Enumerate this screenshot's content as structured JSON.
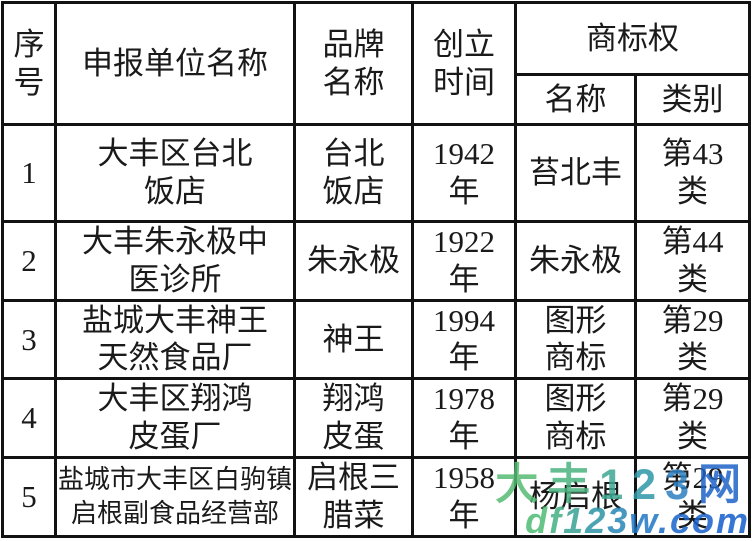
{
  "table": {
    "headers": {
      "serial": "序\n号",
      "company": "申报单位名称",
      "brand": "品牌\n名称",
      "founded": "创立\n时间",
      "trademark_group": "商标权",
      "tm_name": "名称",
      "tm_class": "类别"
    },
    "rows": [
      {
        "serial": "1",
        "company": "大丰区台北\n饭店",
        "brand": "台北\n饭店",
        "founded": "1942\n年",
        "tm_name": "苔北丰",
        "tm_class": "第43\n类"
      },
      {
        "serial": "2",
        "company": "大丰朱永极中\n医诊所",
        "brand": "朱永极",
        "founded": "1922\n年",
        "tm_name": "朱永极",
        "tm_class": "第44\n类"
      },
      {
        "serial": "3",
        "company": "盐城大丰神王\n天然食品厂",
        "brand": "神王",
        "founded": "1994\n年",
        "tm_name": "图形\n商标",
        "tm_class": "第29\n类"
      },
      {
        "serial": "4",
        "company": "大丰区翔鸿\n皮蛋厂",
        "brand": "翔鸿\n皮蛋",
        "founded": "1978\n年",
        "tm_name": "图形\n商标",
        "tm_class": "第29\n类"
      },
      {
        "serial": "5",
        "company": "盐城市大丰区白驹镇\n启根副食品经营部",
        "brand": "启根三\n腊菜",
        "founded": "1958\n年",
        "tm_name": "杨启根",
        "tm_class": "第29\n类"
      }
    ]
  },
  "watermark": {
    "line1": {
      "text": "大丰123网",
      "char_colors": [
        "#55bb73",
        "#4bb27f",
        "#3da791",
        "#2f97a8",
        "#2b80c0",
        "#1e63c8"
      ]
    },
    "line2": {
      "text": "df123w.com",
      "char_colors": [
        "#4dbb74",
        "#43b083",
        "#38a394",
        "#2d95a6",
        "#2787b7",
        "#2176c4",
        "#1c6ac9",
        "#1a63cb",
        "#1760cc",
        "#155ecd"
      ]
    }
  },
  "colors": {
    "border": "#121212",
    "text": "#1a1a1a",
    "background": "#ffffff",
    "watermark_green": "#4fba78",
    "watermark_blue": "#1565c8"
  }
}
